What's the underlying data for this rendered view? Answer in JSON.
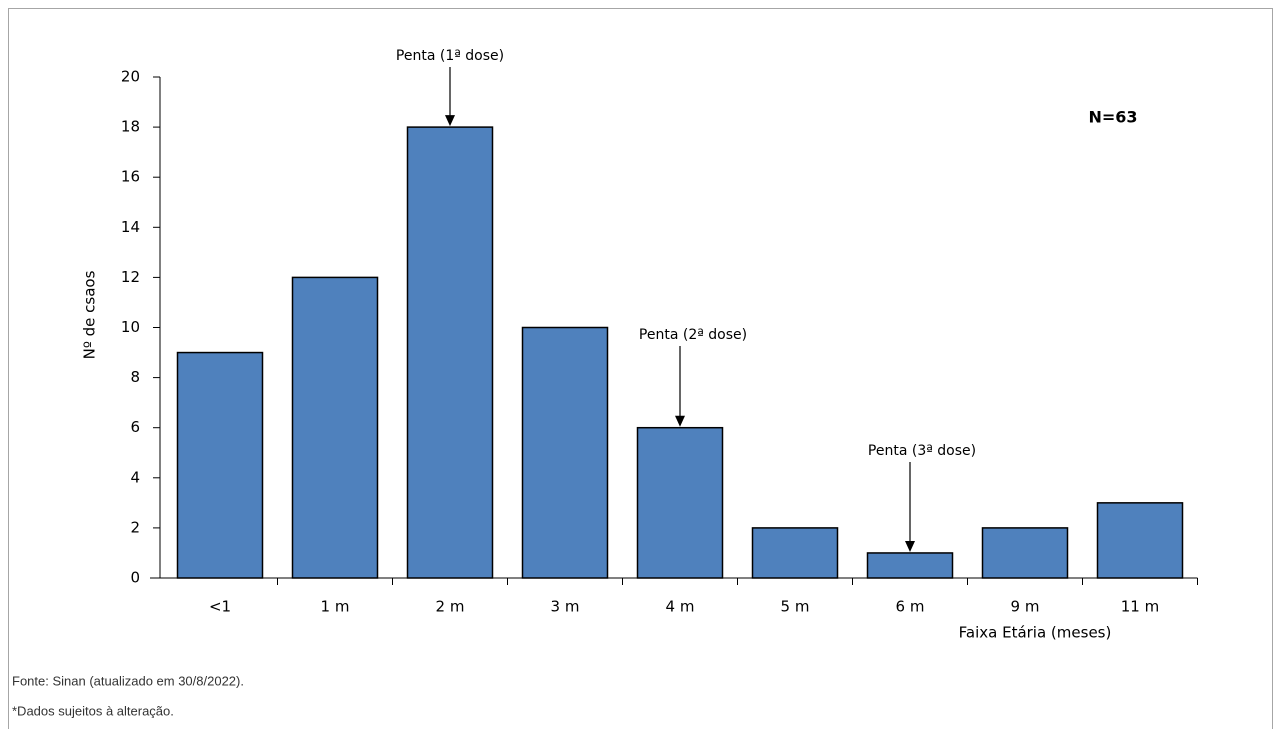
{
  "chart_data": {
    "type": "bar",
    "categories": [
      "<1",
      "1 m",
      "2 m",
      "3 m",
      "4 m",
      "5 m",
      "6 m",
      "9 m",
      "11 m"
    ],
    "values": [
      9,
      12,
      18,
      10,
      6,
      2,
      1,
      2,
      3
    ],
    "color": "#4f81bd",
    "ylim": [
      0,
      20
    ],
    "yticks": [
      0,
      2,
      4,
      6,
      8,
      10,
      12,
      14,
      16,
      18,
      20
    ],
    "y_label": "Nº de csaos",
    "x_label": "Faixa Etária (meses)",
    "sample_note": "N=63",
    "annotations": [
      "Penta (1ª dose)",
      "Penta (2ª dose)",
      "Penta (3ª dose)"
    ]
  },
  "footer": [
    "Fonte: Sinan (atualizado em 30/8/2022).",
    "*Dados sujeitos à alteração."
  ]
}
